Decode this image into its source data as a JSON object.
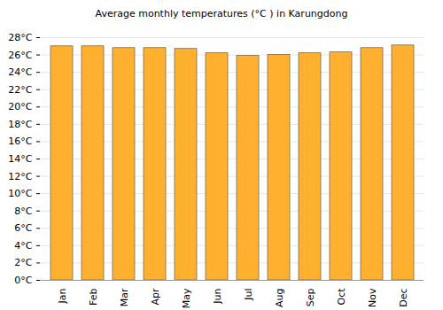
{
  "chart_data": {
    "type": "bar",
    "title": "Average monthly temperatures (°C ) in Karungdong",
    "categories": [
      "Jan",
      "Feb",
      "Mar",
      "Apr",
      "May",
      "Jun",
      "Jul",
      "Aug",
      "Sep",
      "Oct",
      "Nov",
      "Dec"
    ],
    "values": [
      27,
      27,
      26.8,
      26.8,
      26.7,
      26.2,
      25.9,
      26,
      26.2,
      26.3,
      26.8,
      27.1
    ],
    "color": "#ffb02e",
    "ylim": [
      0,
      28
    ],
    "yticks": [
      {
        "value": 0,
        "label": "0°C"
      },
      {
        "value": 2,
        "label": "2°C"
      },
      {
        "value": 4,
        "label": "4°C"
      },
      {
        "value": 6,
        "label": "6°C"
      },
      {
        "value": 8,
        "label": "8°C"
      },
      {
        "value": 10,
        "label": "10°C"
      },
      {
        "value": 12,
        "label": "12°C"
      },
      {
        "value": 14,
        "label": "14°C"
      },
      {
        "value": 16,
        "label": "16°C"
      },
      {
        "value": 18,
        "label": "18°C"
      },
      {
        "value": 20,
        "label": "20°C"
      },
      {
        "value": 22,
        "label": "22°C"
      },
      {
        "value": 24,
        "label": "24°C"
      },
      {
        "value": 26,
        "label": "26°C"
      },
      {
        "value": 28,
        "label": "28°C"
      }
    ],
    "grid": true
  }
}
